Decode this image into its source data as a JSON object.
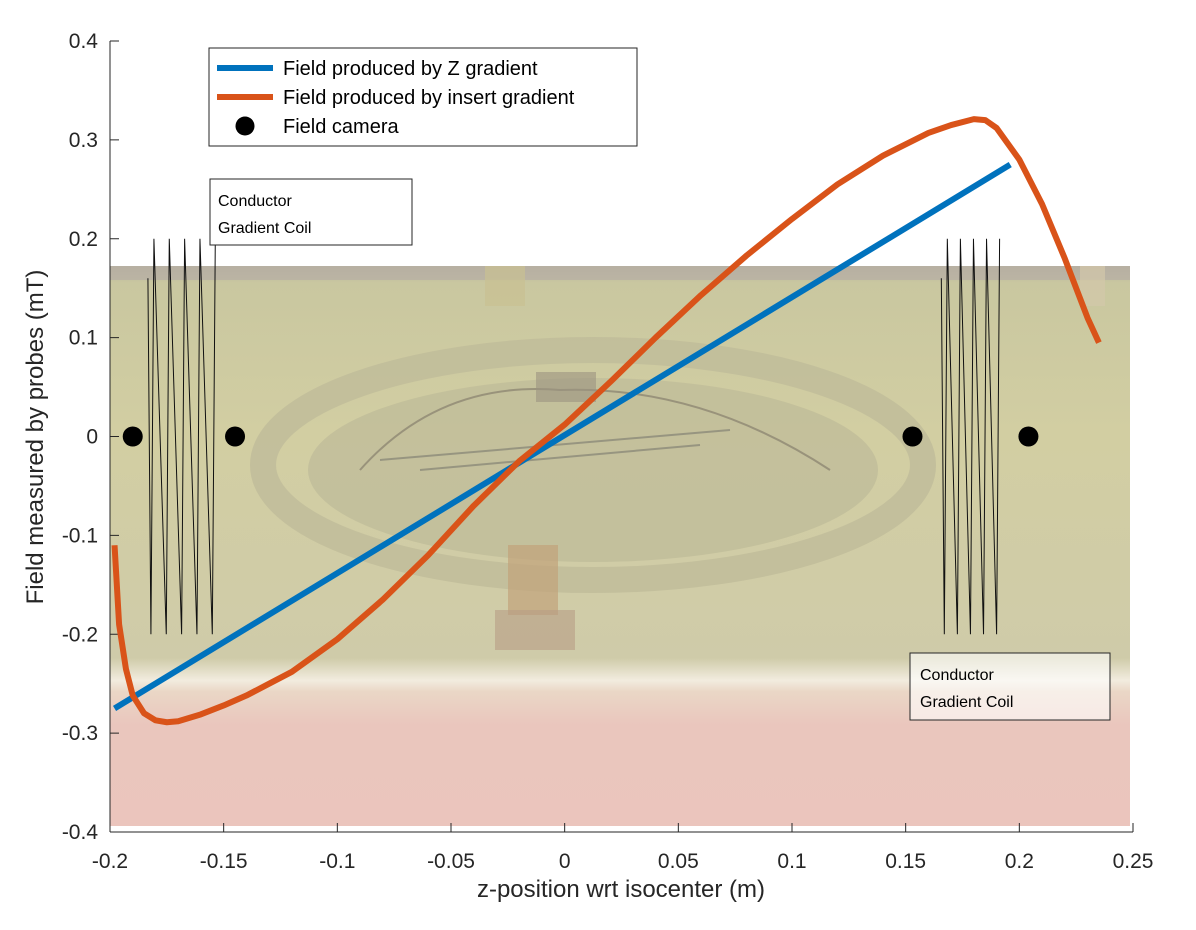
{
  "chart_data": {
    "type": "line",
    "title": "",
    "xlabel": "z-position wrt isocenter (m)",
    "ylabel": "Field measured by probes (mT)",
    "xlim": [
      -0.2,
      0.25
    ],
    "ylim": [
      -0.4,
      0.4
    ],
    "xticks": [
      "-0.2",
      "-0.15",
      "-0.1",
      "-0.05",
      "0",
      "0.05",
      "0.1",
      "0.15",
      "0.2",
      "0.25"
    ],
    "yticks": [
      "-0.4",
      "-0.3",
      "-0.2",
      "-0.1",
      "0",
      "0.1",
      "0.2",
      "0.3",
      "0.4"
    ],
    "grid": false,
    "legend_position": "top-left",
    "background": "photograph of a field camera on a bench",
    "series": [
      {
        "name": "Field produced by Z gradient",
        "color": "#0072BD",
        "x": [
          -0.198,
          0.196
        ],
        "y": [
          -0.275,
          0.275
        ]
      },
      {
        "name": "Field produced by insert gradient",
        "color": "#D95319",
        "x": [
          -0.198,
          -0.196,
          -0.193,
          -0.19,
          -0.185,
          -0.18,
          -0.175,
          -0.17,
          -0.16,
          -0.15,
          -0.14,
          -0.13,
          -0.12,
          -0.1,
          -0.08,
          -0.06,
          -0.04,
          -0.02,
          0,
          0.02,
          0.04,
          0.06,
          0.08,
          0.1,
          0.12,
          0.14,
          0.16,
          0.17,
          0.18,
          0.185,
          0.19,
          0.2,
          0.21,
          0.22,
          0.23,
          0.235
        ],
        "y": [
          -0.11,
          -0.19,
          -0.235,
          -0.262,
          -0.28,
          -0.287,
          -0.289,
          -0.288,
          -0.281,
          -0.272,
          -0.262,
          -0.25,
          -0.238,
          -0.205,
          -0.165,
          -0.12,
          -0.07,
          -0.025,
          0.012,
          0.055,
          0.1,
          0.143,
          0.183,
          0.22,
          0.255,
          0.284,
          0.307,
          0.315,
          0.321,
          0.32,
          0.312,
          0.28,
          0.235,
          0.18,
          0.12,
          0.095
        ]
      },
      {
        "name": "Field camera",
        "type": "scatter",
        "color": "#000000",
        "x": [
          -0.19,
          -0.145,
          0.153,
          0.204
        ],
        "y": [
          0,
          0,
          0,
          0
        ]
      }
    ],
    "annotations": [
      {
        "text_lines": [
          "Conductor",
          "Gradient Coil"
        ]
      },
      {
        "text_lines": [
          "Conductor",
          "Gradient Coil"
        ]
      }
    ],
    "coil_left": {
      "x_min": -0.182,
      "x_max": -0.155,
      "y_min": -0.2,
      "y_max": 0.2,
      "wires": 5
    },
    "coil_right": {
      "x_min": 0.167,
      "x_max": 0.19,
      "y_min": -0.2,
      "y_max": 0.2,
      "wires": 5
    }
  }
}
